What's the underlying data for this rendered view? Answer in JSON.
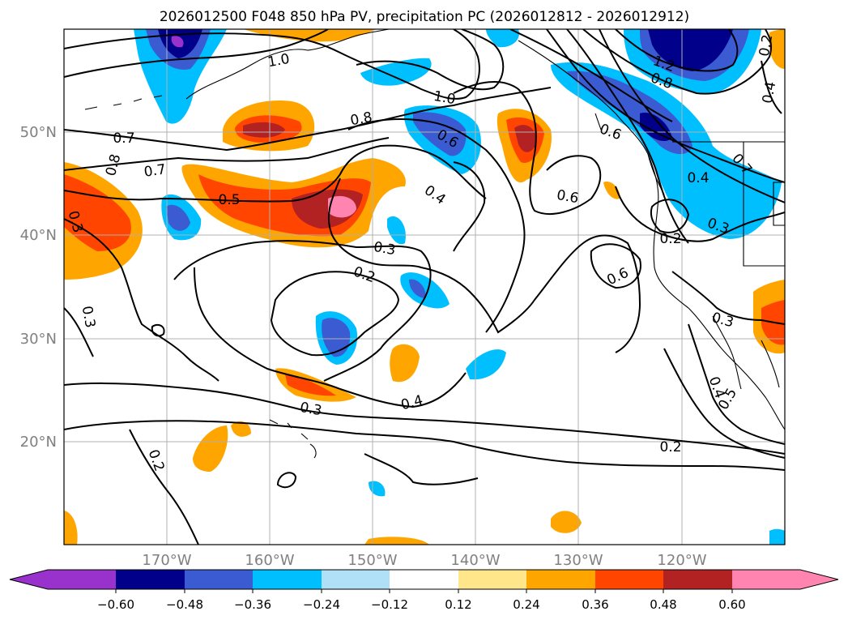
{
  "title": "2026012500 F048 850 hPa PV, precipitation PC (2026012812 - 2026012912)",
  "map": {
    "lat_labels": [
      "50°N",
      "40°N",
      "30°N",
      "20°N"
    ],
    "lon_labels": [
      "170°W",
      "160°W",
      "150°W",
      "140°W",
      "130°W",
      "120°W"
    ],
    "gridlines": true,
    "coastlines": true
  },
  "colorbar": {
    "tick_labels": [
      "−0.60",
      "−0.48",
      "−0.36",
      "−0.24",
      "−0.12",
      "0.12",
      "0.24",
      "0.36",
      "0.48",
      "0.60"
    ],
    "colors": [
      "#9932cc",
      "#00008b",
      "#3a5bd2",
      "#00bfff",
      "#b0e0f8",
      "#ffffff",
      "#ffe68a",
      "#ffa500",
      "#ff4500",
      "#b22222",
      "#ff85b0"
    ],
    "extend": "both"
  },
  "contour_labels": [
    "1.0",
    "1.0",
    "1.2",
    "0.8",
    "0.7",
    "0.8",
    "0.7",
    "0.8",
    "0.6",
    "0.6",
    "0.4",
    "0.7",
    "0.5",
    "0.6",
    "0.4",
    "0.3",
    "0.3",
    "0.3",
    "0.2",
    "0.6",
    "0.3",
    "0.2",
    "0.3",
    "0.3",
    "0.4",
    "0.2",
    "0.4",
    "0.5",
    "0.2",
    "0.2",
    "0.4"
  ]
}
